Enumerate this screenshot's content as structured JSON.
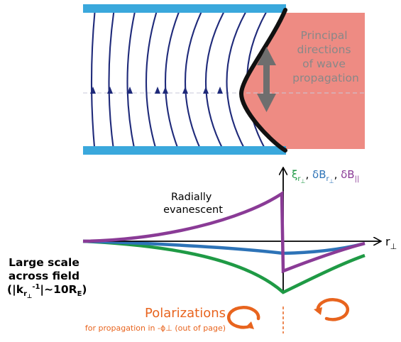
{
  "top_panel": {
    "region_label_lines": [
      "Principal",
      "directions",
      "of wave",
      "propagation"
    ]
  },
  "legend": {
    "xi": "ξ",
    "sub_r": "r",
    "sub_perp": "⊥",
    "sep1": ", ",
    "dB1": "δB",
    "sep2": ", ",
    "dB2": "δB",
    "sub_par": "||"
  },
  "graph": {
    "axis_label": "r",
    "axis_sub": "⊥",
    "annotation_lines": [
      "Radially",
      "evanescent"
    ]
  },
  "scale_note": {
    "line1": "Large scale",
    "line2": "across field",
    "line3_open": "(|k",
    "line3_sub_r": "r",
    "line3_sub_perp": "⊥",
    "line3_sup": "-1",
    "line3_mid": "|~10R",
    "line3_sub_E": "E",
    "line3_close": ")"
  },
  "polarizations": {
    "title": "Polarizations",
    "subtitle": "for propagation in -ϕ⊥ (out of page)"
  },
  "colors": {
    "boundary_blue": "#3aa8dc",
    "field_line_navy": "#1f2a7a",
    "region_pink": "#ee8b83",
    "arrow_gray": "#6e6e6e",
    "purple": "#8a3b96",
    "blue": "#2d73b7",
    "green": "#1f9a45",
    "orange": "#e8641e"
  }
}
